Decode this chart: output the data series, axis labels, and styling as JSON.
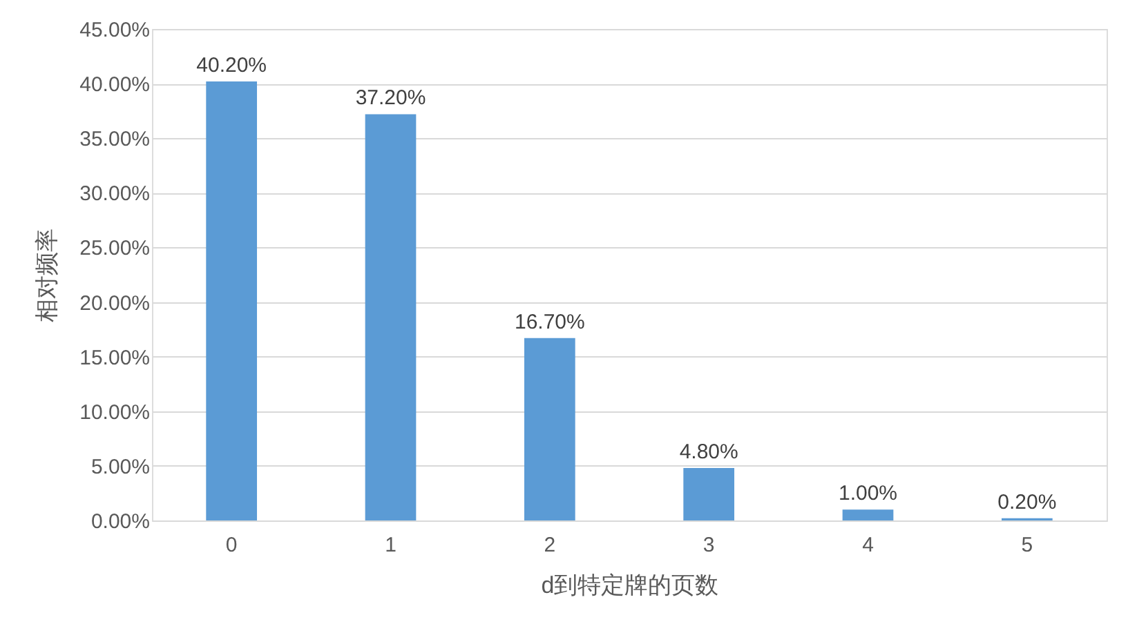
{
  "chart_data": {
    "type": "bar",
    "xlabel": "d到特定牌的页数",
    "ylabel": "相对频率",
    "categories": [
      "0",
      "1",
      "2",
      "3",
      "4",
      "5"
    ],
    "values": [
      40.2,
      37.2,
      16.7,
      4.8,
      1.0,
      0.2
    ],
    "color": "#5b9bd5",
    "value_labels": [
      "40.20%",
      "37.20%",
      "16.70%",
      "4.80%",
      "1.00%",
      "0.20%"
    ],
    "ylim": [
      0,
      45
    ],
    "yticks": [
      {
        "value": 0,
        "label": "0.00%"
      },
      {
        "value": 5,
        "label": "5.00%"
      },
      {
        "value": 10,
        "label": "10.00%"
      },
      {
        "value": 15,
        "label": "15.00%"
      },
      {
        "value": 20,
        "label": "20.00%"
      },
      {
        "value": 25,
        "label": "25.00%"
      },
      {
        "value": 30,
        "label": "30.00%"
      },
      {
        "value": 35,
        "label": "35.00%"
      },
      {
        "value": 40,
        "label": "40.00%"
      },
      {
        "value": 45,
        "label": "45.00%"
      }
    ],
    "grid": "y"
  }
}
